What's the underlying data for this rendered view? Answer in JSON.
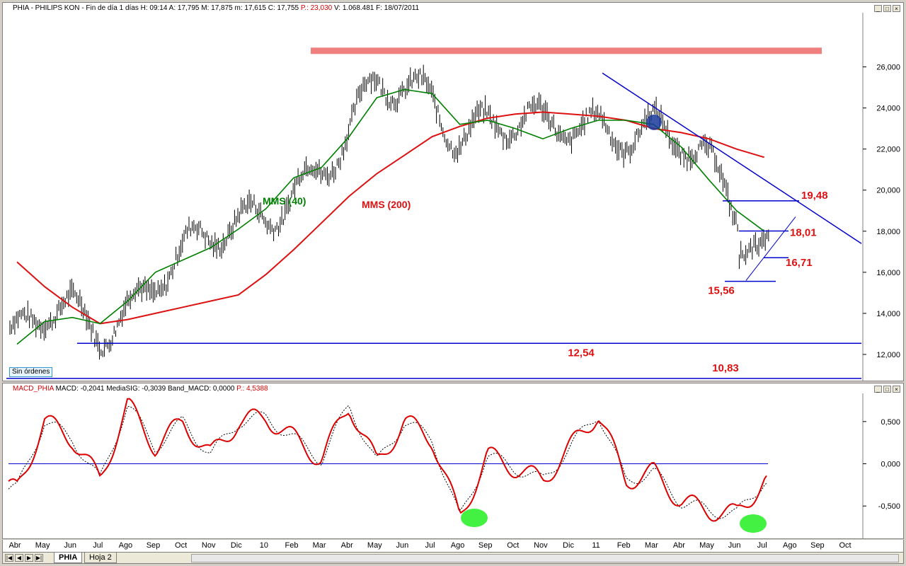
{
  "price_header": {
    "text_main": "PHIA - PHILIPS KON - Fin de día 1 días  H: 09:14  A: 17,795  M: 17,875  m: 17,615  C: 17,755",
    "text_red": "P.: 23,030",
    "text_tail": "V: 1.068.481  F: 18/07/2011"
  },
  "macd_header": {
    "text_red": "MACD_PHIA",
    "text_main": "MACD: -0,2041  MediaSIG: -0,3039  Band_MACD: 0,0000",
    "text_red2": "P.: 4,5388"
  },
  "window_buttons": [
    "_",
    "□",
    "×"
  ],
  "no_orders_label": "Sin órdenes",
  "tabs": [
    "PHIA",
    "Hoja 2"
  ],
  "colors": {
    "price": "#000000",
    "mms40": "#008000",
    "mms200": "#dd1111",
    "trend": "#0000cc",
    "resistance": "#f08080",
    "macd": "#dd0000",
    "signal": "#000000",
    "highlight": "#22ee22"
  },
  "chart_data": [
    {
      "type": "line",
      "title": "PHIA - PHILIPS KON",
      "y_ticks": [
        "26,000",
        "24,000",
        "22,000",
        "20,000",
        "18,000",
        "16,000",
        "14,000",
        "12,000"
      ],
      "x_ticks": [
        "Abr",
        "May",
        "Jun",
        "Jul",
        "Ago",
        "Sep",
        "Oct",
        "Nov",
        "Dic",
        "10",
        "Feb",
        "Mar",
        "Abr",
        "May",
        "Jun",
        "Jul",
        "Ago",
        "Sep",
        "Oct",
        "Nov",
        "Dic",
        "11",
        "Feb",
        "Mar",
        "Abr",
        "May",
        "Jun",
        "Jul",
        "Ago",
        "Sep",
        "Oct"
      ],
      "ylim": [
        11,
        27.5
      ],
      "series": [
        {
          "name": "MMS (40)",
          "x": [
            "Abr",
            "May",
            "Jun",
            "Jul",
            "Ago",
            "Sep",
            "Oct",
            "Nov",
            "Dic",
            "10",
            "Feb",
            "Mar",
            "Abr",
            "May",
            "Jun",
            "Jul",
            "Ago",
            "Sep",
            "Oct",
            "Nov",
            "Dic",
            "11",
            "Feb",
            "Mar",
            "Abr",
            "May",
            "Jun",
            "Jul"
          ],
          "values": [
            12.5,
            13.6,
            13.8,
            13.5,
            14.6,
            16.0,
            16.6,
            17.2,
            18.1,
            19.1,
            20.6,
            21.1,
            22.6,
            24.5,
            24.9,
            24.7,
            23.2,
            23.4,
            23.0,
            22.5,
            23.0,
            23.4,
            23.4,
            23.2,
            22.1,
            20.5,
            19.0,
            18.0
          ]
        },
        {
          "name": "MMS (200)",
          "x": [
            "Abr",
            "May",
            "Jun",
            "Jul",
            "Ago",
            "Sep",
            "Oct",
            "Nov",
            "Dic",
            "10",
            "Feb",
            "Mar",
            "Abr",
            "May",
            "Jun",
            "Jul",
            "Ago",
            "Sep",
            "Oct",
            "Nov",
            "Dic",
            "11",
            "Feb",
            "Mar",
            "Abr",
            "May",
            "Jun",
            "Jul"
          ],
          "values": [
            16.5,
            15.3,
            14.3,
            13.5,
            13.7,
            14.0,
            14.3,
            14.6,
            14.9,
            15.9,
            17.1,
            18.4,
            19.7,
            20.8,
            21.7,
            22.6,
            23.1,
            23.5,
            23.7,
            23.8,
            23.7,
            23.6,
            23.4,
            23.0,
            22.8,
            22.5,
            22.0,
            21.6
          ]
        }
      ],
      "levels": [
        {
          "label": "19,48",
          "value": 19.48
        },
        {
          "label": "18,01",
          "value": 18.01
        },
        {
          "label": "16,71",
          "value": 16.71
        },
        {
          "label": "15,56",
          "value": 15.56
        },
        {
          "label": "12,54",
          "value": 12.54
        },
        {
          "label": "10,83",
          "value": 10.83
        }
      ],
      "resistance_zone": 26.8,
      "annotations": [
        "MMS (40)",
        "MMS (200)"
      ]
    },
    {
      "type": "line",
      "title": "MACD_PHIA",
      "y_ticks": [
        "0,500",
        "0,000",
        "-0,500"
      ],
      "ylim": [
        -0.85,
        0.8
      ],
      "series": [
        {
          "name": "MACD",
          "x": [
            "Abr",
            "May",
            "Jun",
            "Jul",
            "Ago",
            "Sep",
            "Oct",
            "Nov",
            "Dic",
            "10",
            "Feb",
            "Mar",
            "Abr",
            "May",
            "Jun",
            "Jul",
            "Ago",
            "Sep",
            "Oct",
            "Nov",
            "Dic",
            "11",
            "Feb",
            "Mar",
            "Abr",
            "May",
            "Jun",
            "Jul"
          ],
          "values": [
            -0.3,
            0.5,
            0.3,
            -0.2,
            0.7,
            0.2,
            0.5,
            0.1,
            0.5,
            0.55,
            0.3,
            0.05,
            0.7,
            0.0,
            0.5,
            0.3,
            -0.65,
            0.1,
            -0.05,
            -0.2,
            0.2,
            0.6,
            -0.2,
            -0.1,
            -0.45,
            -0.55,
            -0.6,
            -0.2
          ]
        }
      ]
    }
  ]
}
